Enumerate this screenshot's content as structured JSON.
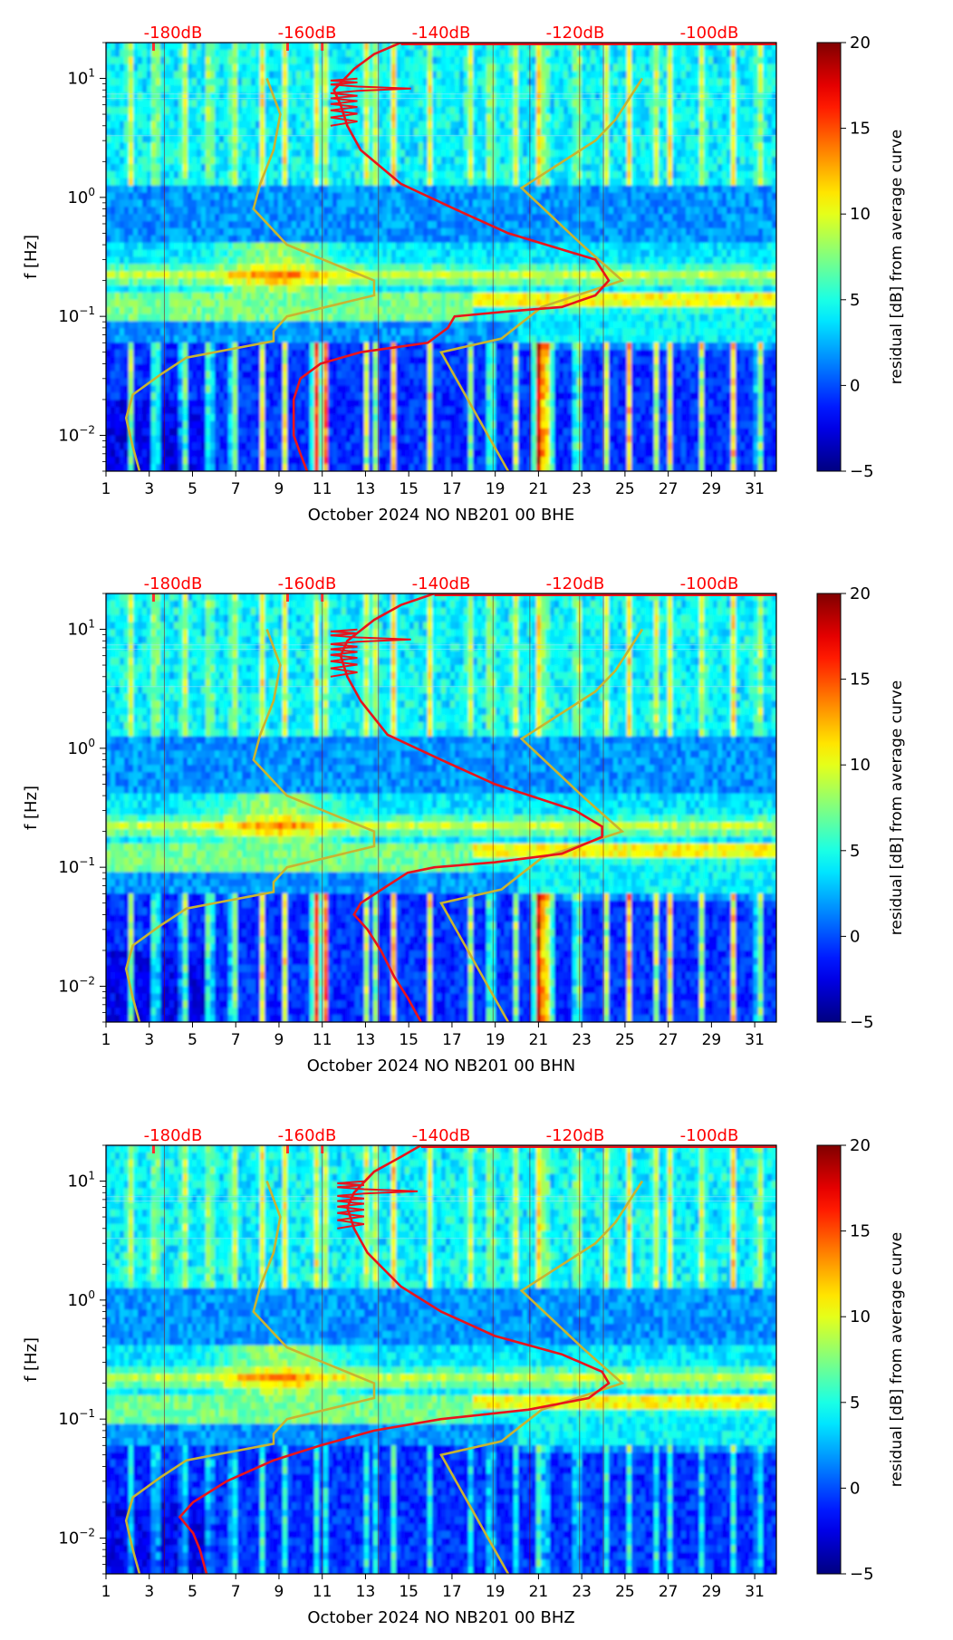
{
  "figure": {
    "colorbar": {
      "label": "residual [dB] from average curve",
      "vmin": -5,
      "vmax": 20,
      "ticks": [
        "20",
        "15",
        "10",
        "5",
        "0",
        "−5"
      ],
      "tick_values": [
        20,
        15,
        10,
        5,
        0,
        -5
      ]
    },
    "colors": {
      "psd_curve": "#e8141c",
      "noise_model": "#c8b432",
      "spike_marker": "#ff3030",
      "db_label": "#ff0000",
      "text": "#000000"
    }
  },
  "chart_data": [
    {
      "type": "heatmap",
      "xlabel": "October 2024 NO NB201 00 BHE",
      "ylabel": "f [Hz]",
      "x_tick_labels": [
        "1",
        "3",
        "5",
        "7",
        "9",
        "11",
        "13",
        "15",
        "17",
        "19",
        "21",
        "23",
        "25",
        "27",
        "29",
        "31"
      ],
      "x_range": [
        1,
        32
      ],
      "y_range_hz": [
        0.005,
        20
      ],
      "y_tick_labels": [
        {
          "base": "10",
          "exp": "1"
        },
        {
          "base": "10",
          "exp": "0"
        },
        {
          "base": "10",
          "exp": "−1"
        },
        {
          "base": "10",
          "exp": "−2"
        }
      ],
      "y_tick_values": [
        10,
        1,
        0.1,
        0.01
      ],
      "top_axis_labels": [
        "-180dB",
        "-160dB",
        "-140dB",
        "-120dB",
        "-100dB"
      ],
      "top_axis_values_db": [
        -180,
        -160,
        -140,
        -120,
        -100
      ],
      "top_axis_range_db": [
        -190,
        -90
      ],
      "spike_days": [
        3.2,
        9.4,
        11.0
      ],
      "psd_mean_db": [
        [
          -160,
          0.005
        ],
        [
          -161,
          0.007
        ],
        [
          -162,
          0.01
        ],
        [
          -162,
          0.015
        ],
        [
          -162,
          0.02
        ],
        [
          -161,
          0.03
        ],
        [
          -158,
          0.04
        ],
        [
          -152,
          0.05
        ],
        [
          -142,
          0.06
        ],
        [
          -139,
          0.08
        ],
        [
          -138,
          0.1
        ],
        [
          -130,
          0.11
        ],
        [
          -122,
          0.12
        ],
        [
          -117,
          0.15
        ],
        [
          -115,
          0.2
        ],
        [
          -117,
          0.3
        ],
        [
          -130,
          0.5
        ],
        [
          -138,
          0.8
        ],
        [
          -146,
          1.3
        ],
        [
          -152,
          2.5
        ],
        [
          -154,
          4.0
        ],
        [
          -155,
          6.0
        ],
        [
          -156,
          8.0
        ],
        [
          -153,
          12
        ],
        [
          -150,
          16
        ],
        [
          -146,
          20
        ]
      ],
      "noise_model_low_db": [
        [
          -185,
          0.005
        ],
        [
          -186,
          0.008
        ],
        [
          -187,
          0.014
        ],
        [
          -186,
          0.022
        ],
        [
          -182,
          0.032
        ],
        [
          -178,
          0.045
        ],
        [
          -165,
          0.062
        ],
        [
          -165,
          0.075
        ],
        [
          -163,
          0.1
        ],
        [
          -150,
          0.15
        ],
        [
          -150,
          0.2
        ],
        [
          -163,
          0.4
        ],
        [
          -168,
          0.8
        ],
        [
          -167,
          1.3
        ],
        [
          -165,
          2.5
        ],
        [
          -164,
          5.0
        ],
        [
          -166,
          10
        ]
      ],
      "noise_model_high_db": [
        [
          -130,
          0.005
        ],
        [
          -140,
          0.05
        ],
        [
          -131,
          0.065
        ],
        [
          -125,
          0.12
        ],
        [
          -113,
          0.2
        ],
        [
          -119,
          0.4
        ],
        [
          -128,
          1.2
        ],
        [
          -117,
          3.0
        ],
        [
          -114,
          4.5
        ],
        [
          -110,
          10
        ]
      ]
    },
    {
      "type": "heatmap",
      "xlabel": "October 2024 NO NB201 00 BHN",
      "ylabel": "f [Hz]",
      "x_tick_labels": [
        "1",
        "3",
        "5",
        "7",
        "9",
        "11",
        "13",
        "15",
        "17",
        "19",
        "21",
        "23",
        "25",
        "27",
        "29",
        "31"
      ],
      "x_range": [
        1,
        32
      ],
      "y_range_hz": [
        0.005,
        20
      ],
      "y_tick_labels": [
        {
          "base": "10",
          "exp": "1"
        },
        {
          "base": "10",
          "exp": "0"
        },
        {
          "base": "10",
          "exp": "−1"
        },
        {
          "base": "10",
          "exp": "−2"
        }
      ],
      "y_tick_values": [
        10,
        1,
        0.1,
        0.01
      ],
      "top_axis_labels": [
        "-180dB",
        "-160dB",
        "-140dB",
        "-120dB",
        "-100dB"
      ],
      "top_axis_values_db": [
        -180,
        -160,
        -140,
        -120,
        -100
      ],
      "top_axis_range_db": [
        -190,
        -90
      ],
      "spike_days": [
        3.2,
        9.4,
        11.0
      ],
      "psd_mean_db": [
        [
          -143,
          0.005
        ],
        [
          -145,
          0.008
        ],
        [
          -147,
          0.012
        ],
        [
          -149,
          0.02
        ],
        [
          -151,
          0.03
        ],
        [
          -153,
          0.04
        ],
        [
          -152,
          0.05
        ],
        [
          -148,
          0.07
        ],
        [
          -145,
          0.09
        ],
        [
          -141,
          0.1
        ],
        [
          -132,
          0.11
        ],
        [
          -122,
          0.13
        ],
        [
          -116,
          0.18
        ],
        [
          -116,
          0.22
        ],
        [
          -120,
          0.3
        ],
        [
          -132,
          0.5
        ],
        [
          -140,
          0.8
        ],
        [
          -148,
          1.3
        ],
        [
          -152,
          2.5
        ],
        [
          -154,
          4.0
        ],
        [
          -155,
          6.0
        ],
        [
          -154,
          8.0
        ],
        [
          -150,
          12
        ],
        [
          -146,
          16
        ],
        [
          -141,
          20
        ]
      ],
      "noise_model_low_db": [
        [
          -185,
          0.005
        ],
        [
          -186,
          0.008
        ],
        [
          -187,
          0.014
        ],
        [
          -186,
          0.022
        ],
        [
          -182,
          0.032
        ],
        [
          -178,
          0.045
        ],
        [
          -165,
          0.062
        ],
        [
          -165,
          0.075
        ],
        [
          -163,
          0.1
        ],
        [
          -150,
          0.15
        ],
        [
          -150,
          0.2
        ],
        [
          -163,
          0.4
        ],
        [
          -168,
          0.8
        ],
        [
          -167,
          1.3
        ],
        [
          -165,
          2.5
        ],
        [
          -164,
          5.0
        ],
        [
          -166,
          10
        ]
      ],
      "noise_model_high_db": [
        [
          -130,
          0.005
        ],
        [
          -140,
          0.05
        ],
        [
          -131,
          0.065
        ],
        [
          -125,
          0.12
        ],
        [
          -113,
          0.2
        ],
        [
          -119,
          0.4
        ],
        [
          -128,
          1.2
        ],
        [
          -117,
          3.0
        ],
        [
          -114,
          4.5
        ],
        [
          -110,
          10
        ]
      ]
    },
    {
      "type": "heatmap",
      "xlabel": "October 2024 NO NB201 00 BHZ",
      "ylabel": "f [Hz]",
      "x_tick_labels": [
        "1",
        "3",
        "5",
        "7",
        "9",
        "11",
        "13",
        "15",
        "17",
        "19",
        "21",
        "23",
        "25",
        "27",
        "29",
        "31"
      ],
      "x_range": [
        1,
        32
      ],
      "y_range_hz": [
        0.005,
        20
      ],
      "y_tick_labels": [
        {
          "base": "10",
          "exp": "1"
        },
        {
          "base": "10",
          "exp": "0"
        },
        {
          "base": "10",
          "exp": "−1"
        },
        {
          "base": "10",
          "exp": "−2"
        }
      ],
      "y_tick_values": [
        10,
        1,
        0.1,
        0.01
      ],
      "top_axis_labels": [
        "-180dB",
        "-160dB",
        "-140dB",
        "-120dB",
        "-100dB"
      ],
      "top_axis_values_db": [
        -180,
        -160,
        -140,
        -120,
        -100
      ],
      "top_axis_range_db": [
        -190,
        -90
      ],
      "spike_days": [
        3.2,
        9.4,
        11.0
      ],
      "psd_mean_db": [
        [
          -175,
          0.005
        ],
        [
          -176,
          0.008
        ],
        [
          -177,
          0.011
        ],
        [
          -179,
          0.015
        ],
        [
          -177,
          0.02
        ],
        [
          -172,
          0.03
        ],
        [
          -165,
          0.045
        ],
        [
          -158,
          0.06
        ],
        [
          -150,
          0.08
        ],
        [
          -140,
          0.1
        ],
        [
          -127,
          0.12
        ],
        [
          -118,
          0.15
        ],
        [
          -115,
          0.2
        ],
        [
          -116,
          0.25
        ],
        [
          -122,
          0.35
        ],
        [
          -132,
          0.5
        ],
        [
          -140,
          0.8
        ],
        [
          -146,
          1.3
        ],
        [
          -151,
          2.5
        ],
        [
          -153,
          4.0
        ],
        [
          -154,
          6.0
        ],
        [
          -153,
          8.0
        ],
        [
          -150,
          12
        ],
        [
          -146,
          16
        ],
        [
          -143,
          20
        ]
      ],
      "noise_model_low_db": [
        [
          -185,
          0.005
        ],
        [
          -186,
          0.008
        ],
        [
          -187,
          0.014
        ],
        [
          -186,
          0.022
        ],
        [
          -182,
          0.032
        ],
        [
          -178,
          0.045
        ],
        [
          -165,
          0.062
        ],
        [
          -165,
          0.075
        ],
        [
          -163,
          0.1
        ],
        [
          -150,
          0.15
        ],
        [
          -150,
          0.2
        ],
        [
          -163,
          0.4
        ],
        [
          -168,
          0.8
        ],
        [
          -167,
          1.3
        ],
        [
          -165,
          2.5
        ],
        [
          -164,
          5.0
        ],
        [
          -166,
          10
        ]
      ],
      "noise_model_high_db": [
        [
          -130,
          0.005
        ],
        [
          -140,
          0.05
        ],
        [
          -131,
          0.065
        ],
        [
          -125,
          0.12
        ],
        [
          -113,
          0.2
        ],
        [
          -119,
          0.4
        ],
        [
          -128,
          1.2
        ],
        [
          -117,
          3.0
        ],
        [
          -114,
          4.5
        ],
        [
          -110,
          10
        ]
      ]
    }
  ]
}
